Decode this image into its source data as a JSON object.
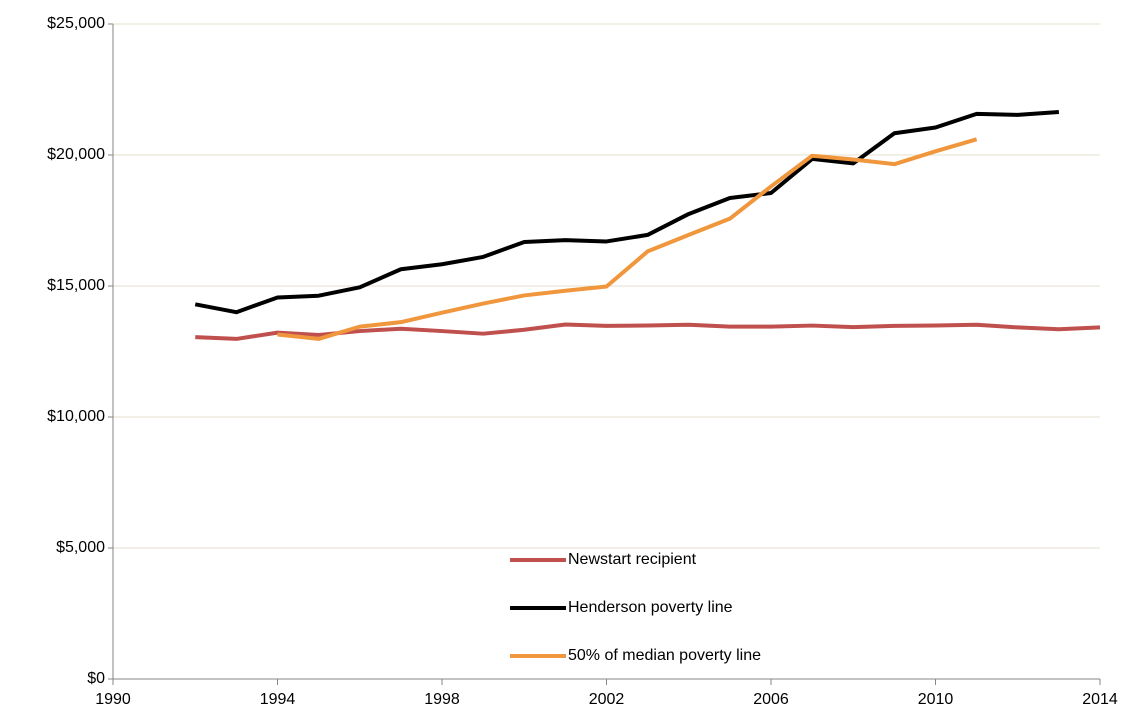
{
  "chart_data": {
    "type": "line",
    "x": [
      1992,
      1993,
      1994,
      1995,
      1996,
      1997,
      1998,
      1999,
      2000,
      2001,
      2002,
      2003,
      2004,
      2005,
      2006,
      2007,
      2008,
      2009,
      2010,
      2011,
      2012,
      2013,
      2014
    ],
    "series": [
      {
        "name": "Newstart recipient",
        "color": "#c0504d",
        "values": [
          13050,
          12980,
          13220,
          13130,
          13280,
          13370,
          13280,
          13180,
          13330,
          13530,
          13480,
          13490,
          13520,
          13450,
          13450,
          13490,
          13430,
          13480,
          13490,
          13520,
          13420,
          13350,
          13420
        ]
      },
      {
        "name": "Henderson poverty line",
        "color": "#000000",
        "values": [
          14300,
          14000,
          14560,
          14630,
          14950,
          15640,
          15830,
          16110,
          16680,
          16750,
          16700,
          16950,
          17750,
          18360,
          18550,
          19850,
          19680,
          20830,
          21050,
          21570,
          21530,
          21640,
          null
        ]
      },
      {
        "name": "50% of median poverty line",
        "color": "#f0963c",
        "values": [
          null,
          null,
          13150,
          12980,
          13450,
          13620,
          13980,
          14330,
          14640,
          14820,
          14980,
          16320,
          16950,
          17570,
          18800,
          19970,
          19830,
          19650,
          20140,
          20600,
          null,
          null,
          null
        ]
      }
    ],
    "xlim": [
      1990,
      2014
    ],
    "xticks": [
      1990,
      1994,
      1998,
      2002,
      2006,
      2010,
      2014
    ],
    "ylim": [
      0,
      25000
    ],
    "yticks": [
      {
        "value": 0,
        "label": "$0"
      },
      {
        "value": 5000,
        "label": "$5,000"
      },
      {
        "value": 10000,
        "label": "$10,000"
      },
      {
        "value": 15000,
        "label": "$15,000"
      },
      {
        "value": 20000,
        "label": "$20,000"
      },
      {
        "value": 25000,
        "label": "$25,000"
      }
    ],
    "grid": true,
    "legend": "bottom"
  }
}
